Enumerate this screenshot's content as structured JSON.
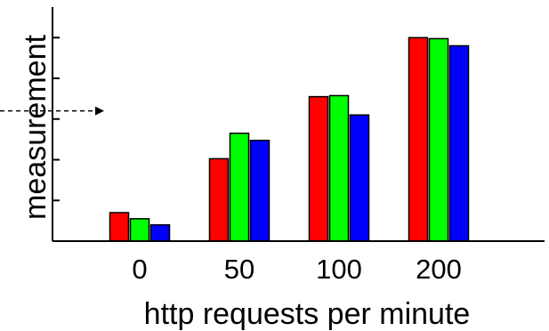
{
  "chart_data": {
    "type": "bar",
    "title": "",
    "xlabel": "http requests per minute",
    "ylabel": "measurement",
    "categories": [
      "0",
      "50",
      "100",
      "200"
    ],
    "series": [
      {
        "color": "#ff0000",
        "values": [
          1.4,
          4.05,
          7.1,
          10.0
        ]
      },
      {
        "color": "#00ff00",
        "values": [
          1.1,
          5.3,
          7.15,
          9.95
        ]
      },
      {
        "color": "#0000ff",
        "values": [
          0.8,
          4.95,
          6.2,
          9.6
        ]
      }
    ],
    "ylim": [
      0,
      11.5
    ],
    "yticks": [
      2,
      4,
      6,
      8,
      10
    ],
    "ytick_labels_visible": false,
    "grid": false,
    "legend": "none",
    "annotation": {
      "type": "dashed-arrow",
      "points_to_y": 6.4,
      "direction": "right"
    }
  }
}
